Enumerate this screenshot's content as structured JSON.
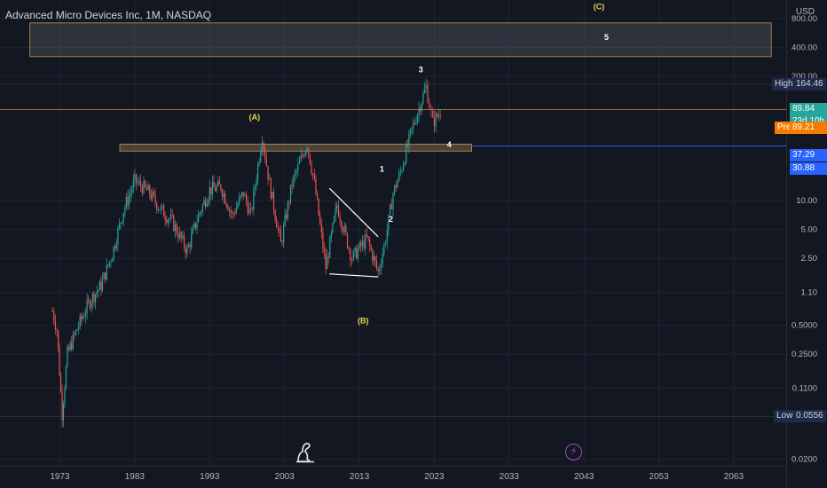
{
  "header": {
    "title": "Advanced Micro Devices Inc, 1M, NASDAQ",
    "currency": "USD"
  },
  "chart_data": {
    "type": "candlestick",
    "y_scale": "log",
    "y_ticks": [
      "800.00",
      "400.00",
      "200.00",
      "10.00",
      "5.00",
      "2.50",
      "1.10",
      "0.5000",
      "0.2500",
      "0.1100",
      "0.0200"
    ],
    "x_ticks": [
      "1973",
      "1983",
      "1993",
      "2003",
      "2013",
      "2023",
      "2033",
      "2043",
      "2053",
      "2063"
    ],
    "x_range": [
      1965,
      2070
    ],
    "y_range": [
      0.017,
      1250
    ],
    "grid": true,
    "price_series": [
      {
        "year": 1972.0,
        "price": 0.7
      },
      {
        "year": 1972.6,
        "price": 0.45
      },
      {
        "year": 1973.3,
        "price": 0.06
      },
      {
        "year": 1974.0,
        "price": 0.25
      },
      {
        "year": 1975.5,
        "price": 0.5
      },
      {
        "year": 1977.0,
        "price": 0.9
      },
      {
        "year": 1978.5,
        "price": 1.3
      },
      {
        "year": 1980.0,
        "price": 2.8
      },
      {
        "year": 1981.5,
        "price": 8
      },
      {
        "year": 1983.0,
        "price": 16
      },
      {
        "year": 1984.0,
        "price": 14
      },
      {
        "year": 1985.0,
        "price": 12
      },
      {
        "year": 1986.5,
        "price": 8
      },
      {
        "year": 1988.0,
        "price": 6
      },
      {
        "year": 1990.0,
        "price": 3
      },
      {
        "year": 1991.5,
        "price": 7
      },
      {
        "year": 1993.0,
        "price": 13
      },
      {
        "year": 1994.5,
        "price": 14
      },
      {
        "year": 1996.0,
        "price": 7
      },
      {
        "year": 1997.5,
        "price": 12
      },
      {
        "year": 1998.5,
        "price": 7
      },
      {
        "year": 2000.0,
        "price": 48
      },
      {
        "year": 2001.0,
        "price": 15
      },
      {
        "year": 2002.5,
        "price": 3.5
      },
      {
        "year": 2004.0,
        "price": 15
      },
      {
        "year": 2006.0,
        "price": 40
      },
      {
        "year": 2007.0,
        "price": 15
      },
      {
        "year": 2008.5,
        "price": 2
      },
      {
        "year": 2010.0,
        "price": 9
      },
      {
        "year": 2012.0,
        "price": 2.5
      },
      {
        "year": 2014.0,
        "price": 4
      },
      {
        "year": 2015.5,
        "price": 1.8
      },
      {
        "year": 2016.5,
        "price": 4
      },
      {
        "year": 2017.5,
        "price": 12
      },
      {
        "year": 2018.5,
        "price": 20
      },
      {
        "year": 2020.0,
        "price": 55
      },
      {
        "year": 2021.9,
        "price": 155
      },
      {
        "year": 2022.8,
        "price": 65
      },
      {
        "year": 2024.0,
        "price": 90
      }
    ],
    "zones": [
      {
        "label": "5",
        "from_year": 1969,
        "to_year": 2068,
        "low": 320,
        "high": 720
      },
      {
        "label": "4",
        "from_year": 1981,
        "to_year": 2028,
        "low": 33,
        "high": 39
      }
    ],
    "triangle": {
      "upper": [
        [
          2009.0,
          13.5
        ],
        [
          2015.5,
          4.2
        ]
      ],
      "lower": [
        [
          2009.0,
          1.72
        ],
        [
          2015.5,
          1.6
        ]
      ]
    },
    "wave_labels": [
      {
        "text": "(A)",
        "year": 1999.0,
        "price": 70,
        "color": "#e8d94a"
      },
      {
        "text": "(B)",
        "year": 2013.5,
        "price": 0.52,
        "color": "#e8d94a"
      },
      {
        "text": "(C)",
        "year": 2045.0,
        "price": 1000,
        "color": "#e8d94a"
      },
      {
        "text": "1",
        "year": 2016.0,
        "price": 20,
        "color": "#ffffff"
      },
      {
        "text": "2",
        "year": 2017.2,
        "price": 6,
        "color": "#ffffff"
      },
      {
        "text": "3",
        "year": 2021.2,
        "price": 220,
        "color": "#ffffff"
      },
      {
        "text": "4",
        "year": 2025.0,
        "price": 36,
        "color": "#ffffff"
      },
      {
        "text": "5",
        "year": 2046.0,
        "price": 480,
        "color": "#ffffff"
      }
    ],
    "levels": [
      {
        "name": "High",
        "value": "164.46",
        "price": 164.46
      },
      {
        "name": "Low",
        "value": "0.0556",
        "price": 0.0556
      }
    ],
    "price_tags": [
      {
        "value": "89.84",
        "sub": "23d 10h",
        "price": 89.84,
        "color": "#26a69a"
      },
      {
        "name": "Pre",
        "value": "89.21",
        "price": 89.21,
        "color": "#f57c00"
      },
      {
        "value": "37.29",
        "price": 37.29,
        "color": "#2962ff"
      },
      {
        "value": "30.88",
        "price": 30.88,
        "color": "#2962ff"
      }
    ]
  }
}
